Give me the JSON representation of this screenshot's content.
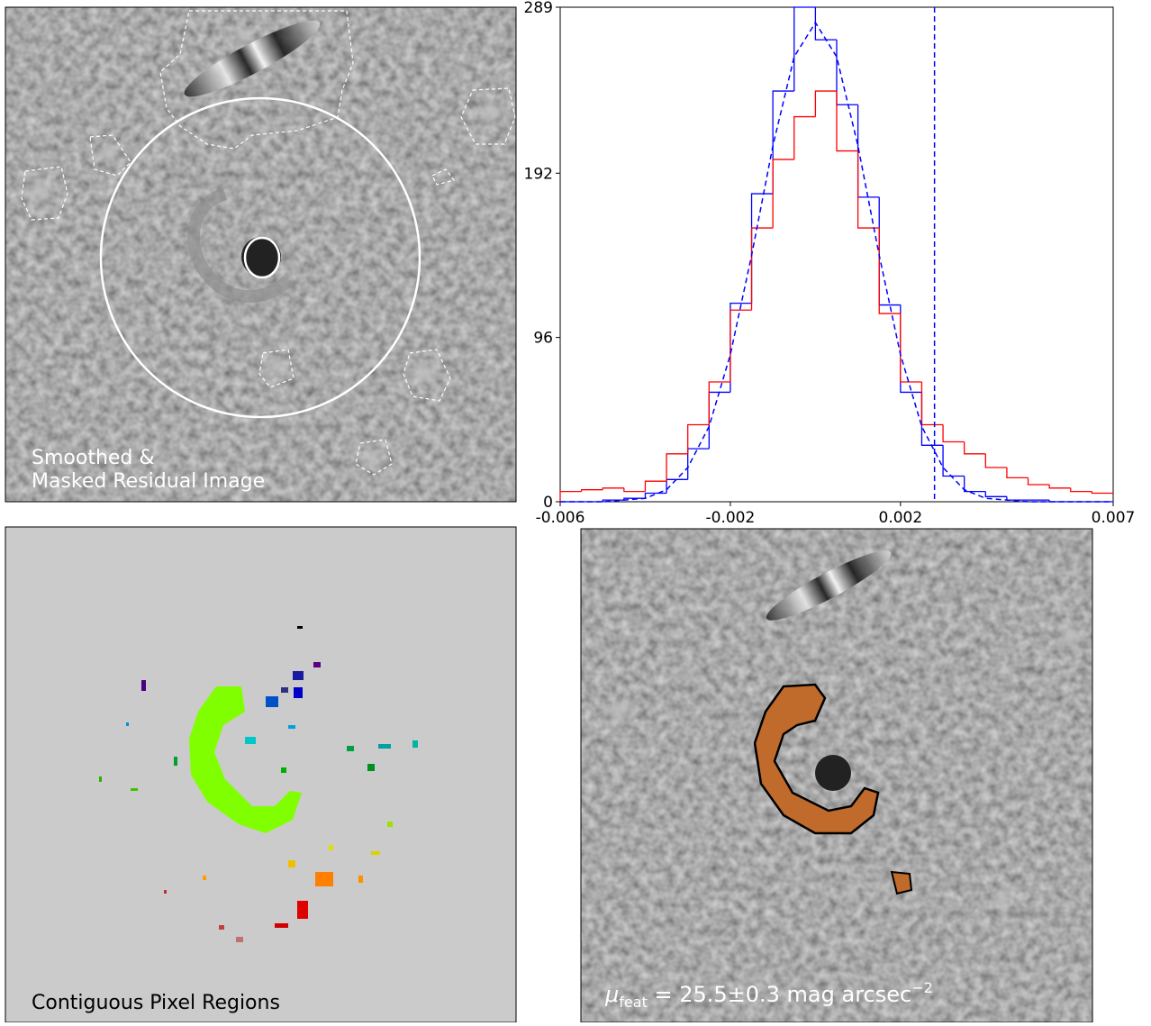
{
  "chart_data": {
    "type": "histogram",
    "bins": [
      -0.006,
      -0.0055,
      -0.005,
      -0.0045,
      -0.004,
      -0.0035,
      -0.003,
      -0.0025,
      -0.002,
      -0.0015,
      -0.001,
      -0.0005,
      0,
      0.0005,
      0.001,
      0.0015,
      0.002,
      0.0025,
      0.003,
      0.0035,
      0.004,
      0.0045,
      0.005,
      0.0055,
      0.006,
      0.0065,
      0.007
    ],
    "series": [
      {
        "color": "#0000ff",
        "values": [
          0,
          0,
          1,
          2,
          5,
          13,
          31,
          64,
          116,
          180,
          240,
          289,
          270,
          232,
          178,
          115,
          64,
          33,
          15,
          6,
          3,
          1,
          1,
          0,
          0,
          0
        ]
      },
      {
        "color": "#ff0000",
        "values": [
          6,
          7,
          8,
          6,
          12,
          28,
          45,
          70,
          112,
          160,
          200,
          225,
          240,
          205,
          160,
          110,
          70,
          45,
          35,
          28,
          20,
          14,
          10,
          8,
          6,
          5
        ]
      }
    ],
    "lines": [
      {
        "color": "#0000ff",
        "linestyle": "dashed",
        "x": [
          -0.006,
          -0.0055,
          -0.005,
          -0.0045,
          -0.004,
          -0.0035,
          -0.003,
          -0.0025,
          -0.002,
          -0.0015,
          -0.001,
          -0.0005,
          0,
          0.0005,
          0.001,
          0.0015,
          0.002,
          0.0025,
          0.003,
          0.0035,
          0.004,
          0.0045,
          0.005,
          0.0055,
          0.006,
          0.0065,
          0.007
        ],
        "values": [
          0,
          0,
          0,
          1,
          2,
          7,
          20,
          44,
          86,
          144,
          208,
          260,
          280,
          260,
          208,
          144,
          86,
          44,
          20,
          7,
          2,
          1,
          0,
          0,
          0,
          0,
          0
        ]
      }
    ],
    "vlines": [
      {
        "x": 0.0028,
        "color": "#0000ff",
        "linestyle": "dashed"
      }
    ],
    "xlim": [
      -0.006,
      0.007
    ],
    "xticks": [
      -0.006,
      -0.002,
      0.002,
      0.007
    ],
    "ylim": [
      0,
      289
    ],
    "yticks": [
      0,
      96,
      192,
      289
    ]
  },
  "panels": {
    "residual": {
      "lines": [
        "Smoothed &",
        "Masked Residual Image"
      ]
    },
    "regions": {
      "label": "Contiguous Pixel Regions"
    },
    "feature": {
      "symbol": "μ",
      "sub": "feat",
      "text": " = 25.5±0.3 mag arcsec",
      "sup": "−2"
    }
  }
}
